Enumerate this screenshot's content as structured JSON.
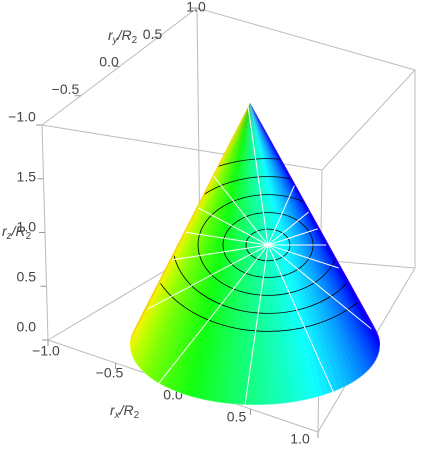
{
  "chart_data": {
    "type": "surface3d",
    "xlabel": [
      "r",
      "x",
      "/R",
      "2"
    ],
    "ylabel": [
      "r",
      "y",
      "/R",
      "2"
    ],
    "zlabel": [
      "r",
      "z",
      "/R",
      "2"
    ],
    "xlim": [
      -1,
      1
    ],
    "ylim": [
      -1,
      1
    ],
    "zlim": [
      0,
      2
    ],
    "xticks": [
      {
        "value": -1,
        "label": "−1.0"
      },
      {
        "value": -0.5,
        "label": "−0.5"
      },
      {
        "value": 0,
        "label": "0.0"
      },
      0.5,
      {
        "value": 1,
        "label": "1.0"
      }
    ],
    "yticks": [
      {
        "value": -1,
        "label": "−1.0"
      },
      {
        "value": -0.5,
        "label": "−0.5"
      },
      {
        "value": 0,
        "label": "0.0"
      },
      0.5,
      {
        "value": 1,
        "label": "1.0"
      }
    ],
    "zticks": [
      {
        "value": 0,
        "label": "0.0"
      },
      0.5,
      {
        "value": 1,
        "label": "1.0"
      },
      1.5
    ]
  }
}
